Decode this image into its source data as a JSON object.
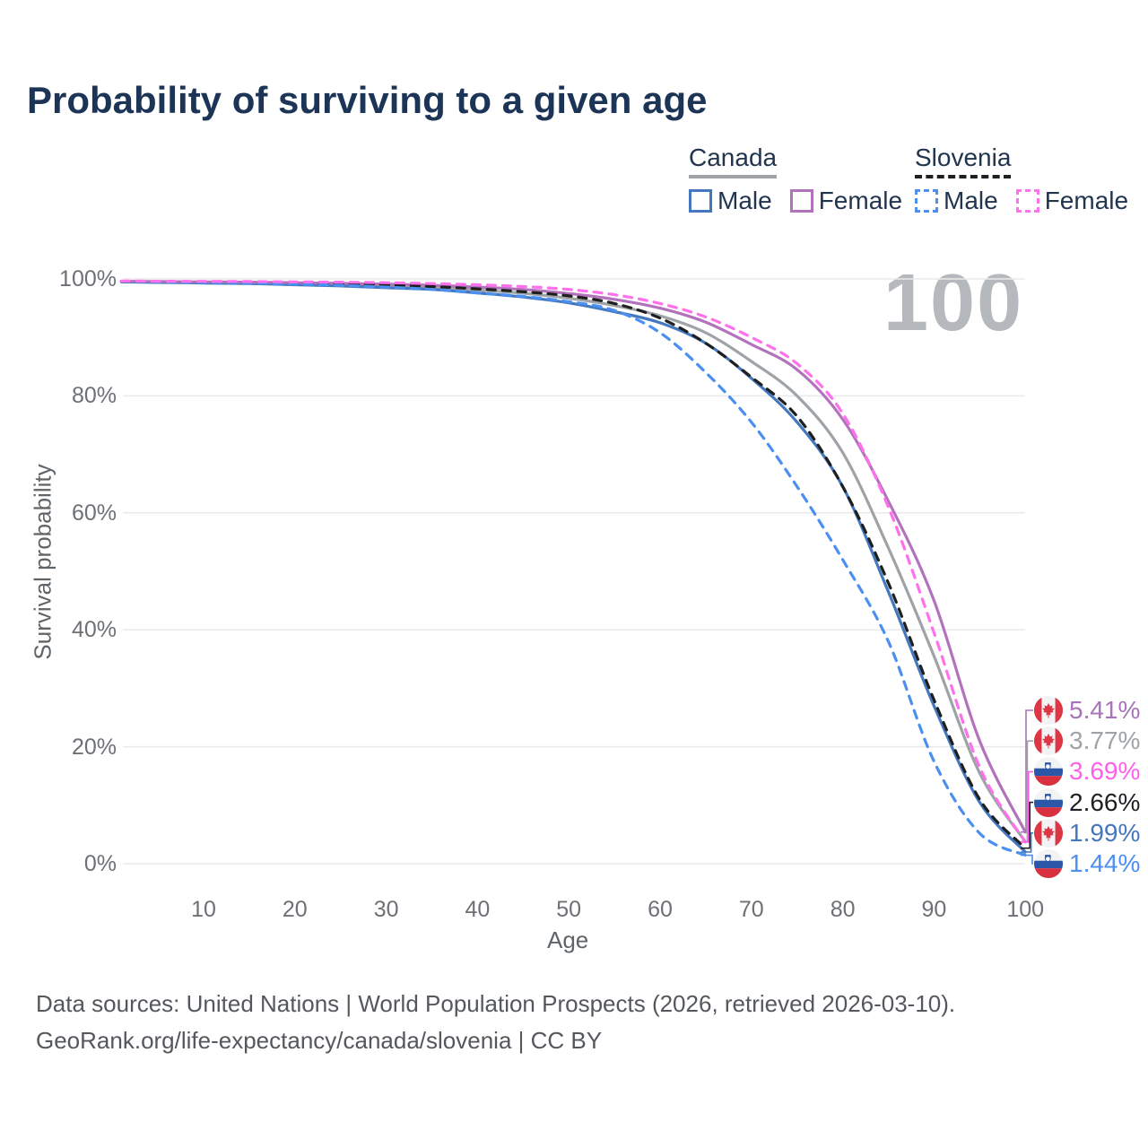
{
  "title": "Probability of surviving to a given age",
  "legend": {
    "groups": [
      {
        "country": "Canada",
        "line_style": "solid",
        "header_line_color": "#9EA3A8",
        "items": [
          {
            "label": "Male",
            "color": "#4478BE"
          },
          {
            "label": "Female",
            "color": "#B273BC"
          }
        ]
      },
      {
        "country": "Slovenia",
        "line_style": "dashed",
        "header_line_color": "#1F1F1F",
        "items": [
          {
            "label": "Male",
            "color": "#4B8FF0"
          },
          {
            "label": "Female",
            "color": "#FF70EC"
          }
        ]
      }
    ]
  },
  "watermark": "100",
  "chart_data": {
    "type": "line",
    "title": "Probability of surviving to a given age",
    "xlabel": "Age",
    "ylabel": "Survival probability",
    "xlim": [
      0,
      100
    ],
    "ylim": [
      0,
      100
    ],
    "grid": "horizontal-only",
    "legend_position": "top-right",
    "x_ticks": [
      10,
      20,
      30,
      40,
      50,
      60,
      70,
      80,
      90,
      100
    ],
    "y_ticks": [
      0,
      20,
      40,
      60,
      80,
      100
    ],
    "y_tick_suffix": "%",
    "x": [
      1,
      5,
      10,
      15,
      20,
      25,
      30,
      35,
      40,
      45,
      50,
      55,
      60,
      65,
      70,
      75,
      80,
      85,
      90,
      95,
      100
    ],
    "series": [
      {
        "key": "canada_both",
        "name": "Canada",
        "sex": "both",
        "color": "#9EA3A8",
        "dash": "solid",
        "values": [
          99.55,
          99.5,
          99.4,
          99.3,
          99.2,
          99.0,
          98.8,
          98.55,
          98.1,
          97.55,
          96.7,
          95.45,
          93.7,
          90.8,
          85.9,
          80.0,
          70.3,
          54.0,
          35.5,
          15.5,
          3.77
        ]
      },
      {
        "key": "canada_male",
        "name": "Canada Male",
        "sex": "male",
        "color": "#4478BE",
        "dash": "solid",
        "values": [
          99.5,
          99.4,
          99.3,
          99.2,
          99.0,
          98.8,
          98.5,
          98.2,
          97.6,
          96.9,
          95.9,
          94.4,
          92.5,
          89.0,
          83.0,
          75.5,
          64.5,
          46.5,
          27.0,
          10.5,
          1.99
        ]
      },
      {
        "key": "canada_female",
        "name": "Canada Female",
        "sex": "female",
        "color": "#B273BC",
        "dash": "solid",
        "values": [
          99.6,
          99.55,
          99.5,
          99.45,
          99.35,
          99.25,
          99.1,
          98.9,
          98.6,
          98.2,
          97.5,
          96.5,
          95.0,
          92.6,
          88.8,
          84.5,
          76.0,
          62.0,
          45.0,
          21.0,
          5.41
        ]
      },
      {
        "key": "slovenia_both",
        "name": "Slovenia",
        "sex": "both",
        "color": "#1F1F1F",
        "dash": "dashed",
        "values": [
          99.6,
          99.55,
          99.5,
          99.42,
          99.3,
          99.15,
          98.95,
          98.7,
          98.3,
          97.8,
          97.1,
          95.8,
          93.3,
          89.0,
          83.2,
          76.5,
          64.5,
          48.0,
          28.0,
          11.0,
          2.66
        ]
      },
      {
        "key": "slovenia_male",
        "name": "Slovenia Male",
        "sex": "male",
        "color": "#4B8FF0",
        "dash": "dashed",
        "values": [
          99.6,
          99.5,
          99.4,
          99.3,
          99.1,
          98.9,
          98.6,
          98.2,
          97.6,
          97.0,
          96.1,
          94.6,
          90.8,
          84.0,
          75.5,
          64.5,
          52.0,
          38.0,
          17.5,
          5.2,
          1.44
        ]
      },
      {
        "key": "slovenia_female",
        "name": "Slovenia Female",
        "sex": "female",
        "color": "#FF70EC",
        "dash": "dashed",
        "values": [
          99.65,
          99.6,
          99.58,
          99.55,
          99.5,
          99.45,
          99.35,
          99.2,
          99.0,
          98.7,
          98.2,
          97.3,
          95.8,
          93.5,
          90.0,
          85.5,
          77.0,
          61.0,
          39.5,
          16.5,
          3.69
        ]
      }
    ],
    "end_labels": [
      {
        "value": "5.41%",
        "pct": 5.41,
        "flag": "canada",
        "series": "canada_female",
        "color": "#A873B8"
      },
      {
        "value": "3.77%",
        "pct": 3.77,
        "flag": "canada",
        "series": "canada_both",
        "color": "#9EA3A8"
      },
      {
        "value": "3.69%",
        "pct": 3.69,
        "flag": "slovenia",
        "series": "slovenia_female",
        "color": "#FF5FEA"
      },
      {
        "value": "2.66%",
        "pct": 2.66,
        "flag": "slovenia",
        "series": "slovenia_both",
        "color": "#1F2023"
      },
      {
        "value": "1.99%",
        "pct": 1.99,
        "flag": "canada",
        "series": "canada_male",
        "color": "#4577BD"
      },
      {
        "value": "1.44%",
        "pct": 1.44,
        "flag": "slovenia",
        "series": "slovenia_male",
        "color": "#4B8FF0"
      }
    ]
  },
  "footer": {
    "line1": "Data sources: United Nations | World Population Prospects (2026, retrieved 2026-03-10).",
    "line2": "GeoRank.org/life-expectancy/canada/slovenia | CC BY"
  }
}
